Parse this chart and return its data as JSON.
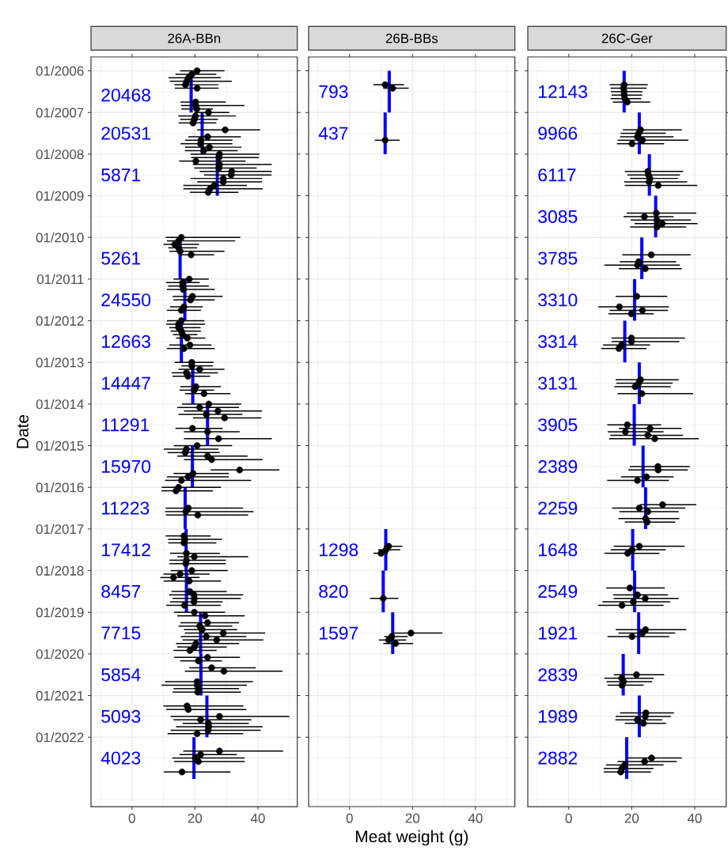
{
  "chart_data": [
    {
      "type": "scatter",
      "orientation": "horizontal",
      "title": "26A-BBn",
      "ylabel": "Date",
      "xlim": [
        -13,
        52.5
      ],
      "ylim": [
        "2023-09",
        "2005-09"
      ],
      "xticks": [
        0,
        20,
        40
      ],
      "yticks": [
        {
          "value": "2006-01",
          "label": "01/2006"
        },
        {
          "value": "2007-01",
          "label": "01/2007"
        },
        {
          "value": "2008-01",
          "label": "01/2008"
        },
        {
          "value": "2009-01",
          "label": "01/2009"
        },
        {
          "value": "2010-01",
          "label": "01/2010"
        },
        {
          "value": "2011-01",
          "label": "01/2011"
        },
        {
          "value": "2012-01",
          "label": "01/2012"
        },
        {
          "value": "2013-01",
          "label": "01/2013"
        },
        {
          "value": "2014-01",
          "label": "01/2014"
        },
        {
          "value": "2015-01",
          "label": "01/2015"
        },
        {
          "value": "2016-01",
          "label": "01/2016"
        },
        {
          "value": "2017-01",
          "label": "01/2017"
        },
        {
          "value": "2018-01",
          "label": "01/2018"
        },
        {
          "value": "2019-01",
          "label": "01/2019"
        },
        {
          "value": "2020-01",
          "label": "01/2020"
        },
        {
          "value": "2021-01",
          "label": "01/2021"
        },
        {
          "value": "2022-01",
          "label": "01/2022"
        }
      ],
      "grid": true,
      "marker": "circle",
      "series": [
        {
          "type": "line",
          "marker": "none",
          "color": "#0000ff",
          "values": [
            18.8,
            18.8,
            null,
            22.3,
            22.3,
            null,
            27.1,
            27.1,
            null,
            15.3,
            15.3,
            null,
            16.8,
            16.8,
            null,
            15.7,
            15.7,
            null,
            19.3,
            19.3,
            null,
            24.0,
            24.0,
            null,
            19.2,
            19.2,
            null,
            16.9,
            16.9,
            null,
            17.2,
            17.2,
            null,
            17.3,
            17.3,
            null,
            21.8,
            21.8,
            null,
            21.9,
            21.9,
            null,
            23.8,
            23.8,
            null,
            19.7,
            19.7
          ],
          "x": [
            "2006-03",
            "2007-01",
            null,
            "2007-01",
            "2008-01",
            null,
            "2008-01",
            "2009-01",
            null,
            "2010-01",
            "2011-01",
            null,
            "2011-01",
            "2012-01",
            null,
            "2012-01",
            "2013-01",
            null,
            "2013-01",
            "2014-01",
            null,
            "2014-01",
            "2015-01",
            null,
            "2015-01",
            "2016-01",
            null,
            "2016-01",
            "2017-01",
            null,
            "2017-01",
            "2018-01",
            null,
            "2018-01",
            "2019-01",
            null,
            "2019-01",
            "2020-01",
            null,
            "2020-01",
            "2021-01",
            null,
            "2021-01",
            "2022-01",
            null,
            "2022-01",
            "2023-01"
          ]
        },
        {
          "color": "#000000",
          "values": [
            20.7,
            19.0,
            18.0,
            17.4,
            17.0,
            20.7,
            20.2,
            20.2,
            20.6,
            24.3,
            20.2,
            19.8,
            19.4,
            29.6,
            24.0,
            21.9,
            21.8,
            24.6,
            22.8,
            27.8,
            27.6,
            20.3,
            27.8,
            27.6,
            31.7,
            31.5,
            29.0,
            29.0,
            26.1,
            24.8,
            24.2,
            15.7,
            14.8,
            13.6,
            14.8,
            15.3,
            18.8,
            18.2,
            16.1,
            16.1,
            16.3,
            19.2,
            18.6,
            16.5,
            15.7,
            15.7,
            14.8,
            14.8,
            15.7,
            16.1,
            17.6,
            18.4,
            16.5,
            19.0,
            19.0,
            21.5,
            17.3,
            17.8,
            20.3,
            19.8,
            22.9,
            24.4,
            21.5,
            27.3,
            23.6,
            29.4,
            19.2,
            24.0,
            27.5,
            20.7,
            17.3,
            16.9,
            24.0,
            25.3,
            34.2,
            19.4,
            17.8,
            15.7,
            14.8,
            14.0,
            17.9,
            17.1,
            20.9,
            16.5,
            16.8,
            16.5,
            17.3,
            19.8,
            17.3,
            17.1,
            19.0,
            15.3,
            13.2,
            18.2,
            18.4,
            19.7,
            19.8,
            19.7,
            16.7,
            19.8,
            23.2,
            24.0,
            21.5,
            22.3,
            29.0,
            23.6,
            26.9,
            20.3,
            19.8,
            18.4,
            24.0,
            21.1,
            25.3,
            29.2,
            20.7,
            20.7,
            21.1,
            20.9,
            17.5,
            17.9,
            27.8,
            21.8,
            24.3,
            24.4,
            24.2,
            20.7,
            27.8,
            21.8,
            20.1,
            21.1,
            15.9
          ],
          "x": [
            "2006-01",
            "2006-02",
            "2006-03",
            "2006-04",
            "2006-05",
            "2006-06",
            "2006-10",
            "2006-11",
            "2006-12",
            "2007-01",
            "2007-02",
            "2007-03",
            "2007-04",
            "2007-06",
            "2007-08",
            "2007-09",
            "2007-10",
            "2007-11",
            "2007-12",
            "2008-01",
            "2008-02",
            "2008-03",
            "2008-04",
            "2008-05",
            "2008-06",
            "2008-07",
            "2008-08",
            "2008-09",
            "2008-10",
            "2008-11",
            "2008-12",
            "2010-01",
            "2010-02",
            "2010-03",
            "2010-04",
            "2010-05",
            "2010-06",
            "2011-01",
            "2011-02",
            "2011-03",
            "2011-04",
            "2011-06",
            "2011-07",
            "2011-09",
            "2011-10",
            "2012-01",
            "2012-02",
            "2012-03",
            "2012-04",
            "2012-05",
            "2012-06",
            "2012-08",
            "2012-09",
            "2013-01",
            "2013-02",
            "2013-03",
            "2013-04",
            "2013-05",
            "2013-08",
            "2013-09",
            "2013-10",
            "2014-01",
            "2014-02",
            "2014-03",
            "2014-04",
            "2014-05",
            "2014-08",
            "2014-09",
            "2014-11",
            "2015-01",
            "2015-02",
            "2015-03",
            "2015-04",
            "2015-05",
            "2015-08",
            "2015-09",
            "2015-10",
            "2015-11",
            "2016-01",
            "2016-02",
            "2016-07",
            "2016-08",
            "2016-09",
            "2017-03",
            "2017-04",
            "2017-05",
            "2017-08",
            "2017-09",
            "2017-10",
            "2017-11",
            "2018-01",
            "2018-02",
            "2018-03",
            "2018-04",
            "2018-07",
            "2018-08",
            "2018-09",
            "2018-10",
            "2018-11",
            "2019-01",
            "2019-02",
            "2019-04",
            "2019-05",
            "2019-06",
            "2019-07",
            "2019-08",
            "2019-09",
            "2019-10",
            "2019-11",
            "2019-12",
            "2020-02",
            "2020-03",
            "2020-05",
            "2020-06",
            "2020-09",
            "2020-10",
            "2020-11",
            "2020-12",
            "2021-04",
            "2021-05",
            "2021-07",
            "2021-08",
            "2021-09",
            "2021-10",
            "2021-11",
            "2021-12",
            "2022-05",
            "2022-06",
            "2022-07",
            "2022-08",
            "2022-11"
          ],
          "errors": [
            [
              15.3,
              29.4
            ],
            [
              13.8,
              26.8
            ],
            [
              11.6,
              28.2
            ],
            [
              12.0,
              31.7
            ],
            [
              13.5,
              27.5
            ],
            [
              13.6,
              27.5
            ],
            [
              15.4,
              29.8
            ],
            [
              15.5,
              35.7
            ],
            [
              15.7,
              25.7
            ],
            [
              19.8,
              30.9
            ],
            [
              14.7,
              33.0
            ],
            [
              15.3,
              27.3
            ],
            [
              14.8,
              26.8
            ],
            [
              20.7,
              40.7
            ],
            [
              17.9,
              34.6
            ],
            [
              16.9,
              31.9
            ],
            [
              15.4,
              31.9
            ],
            [
              16.9,
              34.8
            ],
            [
              16.8,
              33.6
            ],
            [
              18.6,
              40.5
            ],
            [
              18.8,
              40.3
            ],
            [
              15.0,
              36.1
            ],
            [
              19.3,
              44.4
            ],
            [
              19.8,
              39.6
            ],
            [
              21.5,
              44.4
            ],
            [
              22.9,
              44.3
            ],
            [
              18.6,
              41.3
            ],
            [
              20.7,
              41.3
            ],
            [
              16.3,
              36.5
            ],
            [
              16.3,
              41.5
            ],
            [
              18.4,
              33.8
            ],
            [
              10.7,
              34.4
            ],
            [
              11.1,
              32.8
            ],
            [
              10.0,
              21.3
            ],
            [
              11.5,
              20.7
            ],
            [
              11.9,
              29.4
            ],
            [
              15.3,
              26.1
            ],
            [
              13.2,
              24.4
            ],
            [
              10.8,
              21.5
            ],
            [
              11.5,
              24.4
            ],
            [
              11.1,
              26.3
            ],
            [
              12.9,
              28.8
            ],
            [
              13.2,
              26.3
            ],
            [
              12.1,
              22.5
            ],
            [
              11.1,
              21.9
            ],
            [
              11.1,
              23.0
            ],
            [
              10.9,
              23.2
            ],
            [
              11.9,
              21.8
            ],
            [
              12.3,
              21.9
            ],
            [
              13.0,
              20.8
            ],
            [
              14.0,
              23.3
            ],
            [
              11.9,
              25.3
            ],
            [
              11.1,
              26.3
            ],
            [
              13.6,
              25.9
            ],
            [
              15.7,
              25.7
            ],
            [
              14.8,
              29.4
            ],
            [
              12.6,
              27.3
            ],
            [
              12.9,
              24.8
            ],
            [
              15.3,
              28.2
            ],
            [
              15.1,
              26.1
            ],
            [
              16.9,
              31.3
            ],
            [
              15.9,
              34.7
            ],
            [
              14.4,
              34.0
            ],
            [
              16.5,
              41.3
            ],
            [
              14.8,
              35.1
            ],
            [
              19.4,
              41.1
            ],
            [
              13.8,
              28.8
            ],
            [
              16.5,
              34.2
            ],
            [
              16.5,
              44.4
            ],
            [
              13.3,
              31.8
            ],
            [
              10.1,
              27.5
            ],
            [
              11.3,
              27.8
            ],
            [
              14.4,
              36.7
            ],
            [
              16.5,
              41.5
            ],
            [
              25.0,
              46.8
            ],
            [
              13.2,
              30.8
            ],
            [
              11.1,
              30.8
            ],
            [
              10.5,
              37.8
            ],
            [
              9.4,
              28.3
            ],
            [
              9.4,
              25.7
            ],
            [
              10.7,
              35.3
            ],
            [
              10.5,
              38.6
            ],
            [
              10.8,
              36.9
            ],
            [
              10.7,
              25.0
            ],
            [
              11.5,
              28.6
            ],
            [
              11.5,
              26.8
            ],
            [
              12.1,
              27.9
            ],
            [
              14.4,
              36.9
            ],
            [
              11.9,
              29.8
            ],
            [
              11.9,
              29.8
            ],
            [
              12.3,
              30.4
            ],
            [
              10.0,
              24.7
            ],
            [
              9.0,
              21.5
            ],
            [
              10.1,
              28.3
            ],
            [
              12.6,
              30.1
            ],
            [
              11.8,
              35.3
            ],
            [
              12.9,
              34.6
            ],
            [
              12.1,
              28.8
            ],
            [
              10.9,
              28.2
            ],
            [
              13.4,
              29.6
            ],
            [
              14.4,
              35.8
            ],
            [
              15.4,
              34.0
            ],
            [
              14.8,
              31.9
            ],
            [
              16.5,
              33.4
            ],
            [
              16.8,
              42.3
            ],
            [
              15.5,
              36.3
            ],
            [
              16.1,
              41.7
            ],
            [
              14.0,
              34.0
            ],
            [
              14.4,
              30.1
            ],
            [
              13.2,
              26.9
            ],
            [
              13.4,
              34.3
            ],
            [
              15.3,
              28.6
            ],
            [
              18.2,
              39.3
            ],
            [
              16.8,
              47.8
            ],
            [
              10.5,
              38.4
            ],
            [
              9.4,
              36.5
            ],
            [
              13.2,
              34.0
            ],
            [
              12.9,
              34.6
            ],
            [
              10.0,
              35.4
            ],
            [
              10.9,
              36.3
            ],
            [
              12.3,
              50.0
            ],
            [
              13.2,
              37.9
            ],
            [
              16.1,
              37.1
            ],
            [
              14.0,
              41.5
            ],
            [
              12.3,
              40.9
            ],
            [
              11.3,
              35.3
            ],
            [
              16.3,
              48.0
            ],
            [
              15.1,
              33.3
            ],
            [
              12.8,
              35.8
            ],
            [
              13.4,
              35.8
            ],
            [
              10.1,
              31.3
            ]
          ]
        }
      ],
      "annotations": [
        "20468",
        "20531",
        "5871",
        "5261",
        "24550",
        "12663",
        "14447",
        "11291",
        "15970",
        "11223",
        "17412",
        "8457",
        "7715",
        "5854",
        "5093",
        "4023"
      ]
    },
    {
      "type": "scatter",
      "orientation": "horizontal",
      "title": "26B-BBs",
      "xlabel": "Meat weight (g)",
      "xlim": [
        -13,
        52.5
      ],
      "ylim": [
        "2023-09",
        "2005-09"
      ],
      "xticks": [
        0,
        20,
        40
      ],
      "yticks": [
        {
          "value": "2006-01",
          "label": null
        },
        {
          "value": "2007-01",
          "label": null
        },
        {
          "value": "2008-01",
          "label": null
        },
        {
          "value": "2009-01",
          "label": null
        },
        {
          "value": "2010-01",
          "label": null
        },
        {
          "value": "2011-01",
          "label": null
        },
        {
          "value": "2012-01",
          "label": null
        },
        {
          "value": "2013-01",
          "label": null
        },
        {
          "value": "2014-01",
          "label": null
        },
        {
          "value": "2015-01",
          "label": null
        },
        {
          "value": "2016-01",
          "label": null
        },
        {
          "value": "2017-01",
          "label": null
        },
        {
          "value": "2018-01",
          "label": null
        },
        {
          "value": "2019-01",
          "label": null
        },
        {
          "value": "2020-01",
          "label": null
        },
        {
          "value": "2021-01",
          "label": null
        },
        {
          "value": "2022-01",
          "label": null
        }
      ],
      "tick_labels": "x",
      "grid": true,
      "marker": "circle",
      "series": [
        {
          "type": "line",
          "marker": "none",
          "color": "#0000ff",
          "values": [
            12.6,
            12.6,
            null,
            11.3,
            11.3,
            null,
            11.5,
            11.5,
            null,
            10.7,
            10.7,
            null,
            13.7,
            13.7
          ],
          "x": [
            "2006-01",
            "2007-01",
            null,
            "2007-01",
            "2008-01",
            null,
            "2017-01",
            "2018-01",
            null,
            "2018-01",
            "2019-01",
            null,
            "2019-01",
            "2020-01"
          ]
        },
        {
          "color": "#000000",
          "values": [
            11.3,
            13.7,
            11.3,
            12.4,
            11.6,
            10.0,
            10.7,
            19.5,
            13.4,
            12.4,
            14.6
          ],
          "x": [
            "2006-05",
            "2006-06",
            "2007-09",
            "2017-06",
            "2017-07",
            "2017-08",
            "2018-09",
            "2019-07",
            "2019-08",
            "2019-09",
            "2019-10"
          ],
          "errors": [
            [
              7.6,
              17.3
            ],
            [
              10.7,
              18.8
            ],
            [
              8.0,
              15.9
            ],
            [
              10.9,
              16.8
            ],
            [
              9.1,
              16.1
            ],
            [
              7.6,
              12.2
            ],
            [
              6.5,
              15.5
            ],
            [
              13.4,
              29.5
            ],
            [
              11.0,
              18.5
            ],
            [
              9.3,
              18.0
            ],
            [
              10.7,
              20.2
            ]
          ]
        }
      ],
      "annotations": [
        "793",
        "437",
        "1298",
        "820",
        "1597"
      ]
    },
    {
      "type": "scatter",
      "orientation": "horizontal",
      "title": "26C-Ger",
      "xlim": [
        -13,
        50
      ],
      "ylim": [
        "2023-09",
        "2005-09"
      ],
      "xticks": [
        0,
        20,
        40
      ],
      "yticks": [
        {
          "value": "2006-01",
          "label": null
        },
        {
          "value": "2007-01",
          "label": null
        },
        {
          "value": "2008-01",
          "label": null
        },
        {
          "value": "2009-01",
          "label": null
        },
        {
          "value": "2010-01",
          "label": null
        },
        {
          "value": "2011-01",
          "label": null
        },
        {
          "value": "2012-01",
          "label": null
        },
        {
          "value": "2013-01",
          "label": null
        },
        {
          "value": "2014-01",
          "label": null
        },
        {
          "value": "2015-01",
          "label": null
        },
        {
          "value": "2016-01",
          "label": null
        },
        {
          "value": "2017-01",
          "label": null
        },
        {
          "value": "2018-01",
          "label": null
        },
        {
          "value": "2019-01",
          "label": null
        },
        {
          "value": "2020-01",
          "label": null
        },
        {
          "value": "2021-01",
          "label": null
        },
        {
          "value": "2022-01",
          "label": null
        }
      ],
      "tick_labels": "x",
      "grid": true,
      "marker": "circle",
      "series": [
        {
          "type": "line",
          "marker": "none",
          "color": "#0000ff",
          "values": [
            17.6,
            17.6,
            null,
            22.4,
            22.4,
            null,
            25.6,
            25.6,
            null,
            27.6,
            27.6,
            null,
            23.2,
            23.2,
            null,
            20.9,
            20.9,
            null,
            17.8,
            17.8,
            null,
            22.4,
            22.4,
            null,
            20.8,
            20.8,
            null,
            23.6,
            23.6,
            null,
            24.4,
            24.4,
            null,
            20.3,
            20.3,
            null,
            20.9,
            20.9,
            null,
            22.2,
            22.2,
            null,
            17.3,
            17.3,
            null,
            22.4,
            22.4,
            null,
            18.4,
            18.4
          ],
          "x": [
            "2006-01",
            "2007-01",
            null,
            "2007-01",
            "2008-01",
            null,
            "2008-01",
            "2009-01",
            null,
            "2009-01",
            "2010-01",
            null,
            "2010-01",
            "2011-01",
            null,
            "2011-01",
            "2012-01",
            null,
            "2012-01",
            "2013-01",
            null,
            "2013-01",
            "2014-01",
            null,
            "2014-01",
            "2015-01",
            null,
            "2015-01",
            "2016-01",
            null,
            "2016-01",
            "2017-01",
            null,
            "2017-01",
            "2018-01",
            null,
            "2018-01",
            "2019-01",
            null,
            "2019-01",
            "2020-01",
            null,
            "2020-01",
            "2021-01",
            null,
            "2021-01",
            "2022-01",
            null,
            "2022-01",
            "2023-01"
          ]
        },
        {
          "color": "#000000",
          "values": [
            17.6,
            17.4,
            17.6,
            17.6,
            17.8,
            18.6,
            22.8,
            22.2,
            21.8,
            23.4,
            20.1,
            25.1,
            25.3,
            25.8,
            25.5,
            28.4,
            27.8,
            24.0,
            28.0,
            29.7,
            28.0,
            26.2,
            22.2,
            21.8,
            24.3,
            21.6,
            16.1,
            23.4,
            19.9,
            19.9,
            19.9,
            16.8,
            15.9,
            22.8,
            22.2,
            21.1,
            23.2,
            18.6,
            25.8,
            18.0,
            25.1,
            27.3,
            28.3,
            28.4,
            24.7,
            21.8,
            29.8,
            22.4,
            25.1,
            24.4,
            24.9,
            22.4,
            20.1,
            18.7,
            19.4,
            21.8,
            24.3,
            20.5,
            16.9,
            24.4,
            23.4,
            20.1,
            21.5,
            16.8,
            17.4,
            16.9,
            24.5,
            24.3,
            21.8,
            23.7,
            26.3,
            24.1,
            17.8,
            16.9,
            16.5
          ],
          "x": [
            "2006-05",
            "2006-06",
            "2006-07",
            "2006-08",
            "2006-09",
            "2006-10",
            "2007-06",
            "2007-07",
            "2007-08",
            "2007-09",
            "2007-10",
            "2008-06",
            "2008-07",
            "2008-08",
            "2008-09",
            "2008-10",
            "2009-06",
            "2009-07",
            "2009-08",
            "2009-09",
            "2009-10",
            "2010-06",
            "2010-08",
            "2010-09",
            "2010-10",
            "2011-06",
            "2011-09",
            "2011-10",
            "2011-11",
            "2012-06",
            "2012-07",
            "2012-08",
            "2012-09",
            "2013-06",
            "2013-07",
            "2013-08",
            "2013-10",
            "2014-07",
            "2014-08",
            "2014-09",
            "2014-10",
            "2014-11",
            "2015-07",
            "2015-08",
            "2015-10",
            "2015-11",
            "2016-06",
            "2016-07",
            "2016-08",
            "2016-10",
            "2016-11",
            "2017-06",
            "2017-07",
            "2017-08",
            "2018-06",
            "2018-08",
            "2018-09",
            "2018-10",
            "2018-11",
            "2019-06",
            "2019-07",
            "2019-08",
            "2020-07",
            "2020-08",
            "2020-09",
            "2020-10",
            "2021-06",
            "2021-07",
            "2021-08",
            "2021-09",
            "2022-07",
            "2022-08",
            "2022-09",
            "2022-10",
            "2022-11"
          ],
          "errors": [
            [
              13.0,
              25.1
            ],
            [
              13.3,
              24.7
            ],
            [
              13.4,
              23.4
            ],
            [
              13.6,
              23.3
            ],
            [
              13.3,
              23.0
            ],
            [
              14.0,
              25.9
            ],
            [
              17.2,
              35.9
            ],
            [
              16.5,
              30.8
            ],
            [
              16.3,
              33.3
            ],
            [
              15.5,
              38.0
            ],
            [
              15.3,
              30.3
            ],
            [
              17.8,
              36.3
            ],
            [
              18.6,
              35.3
            ],
            [
              19.5,
              34.7
            ],
            [
              17.6,
              37.6
            ],
            [
              17.8,
              40.8
            ],
            [
              18.4,
              40.5
            ],
            [
              17.4,
              33.3
            ],
            [
              19.7,
              38.8
            ],
            [
              20.9,
              40.9
            ],
            [
              19.5,
              37.3
            ],
            [
              17.0,
              38.7
            ],
            [
              16.2,
              34.1
            ],
            [
              11.3,
              35.3
            ],
            [
              15.9,
              35.9
            ],
            [
              14.9,
              31.3
            ],
            [
              9.4,
              31.8
            ],
            [
              13.0,
              31.5
            ],
            [
              12.6,
              27.0
            ],
            [
              13.6,
              36.9
            ],
            [
              13.6,
              35.1
            ],
            [
              10.9,
              25.8
            ],
            [
              10.3,
              24.7
            ],
            [
              14.9,
              34.9
            ],
            [
              15.1,
              33.0
            ],
            [
              14.5,
              32.4
            ],
            [
              15.5,
              39.5
            ],
            [
              12.2,
              29.3
            ],
            [
              15.9,
              35.8
            ],
            [
              12.4,
              30.1
            ],
            [
              13.2,
              36.3
            ],
            [
              12.8,
              41.3
            ],
            [
              19.4,
              38.4
            ],
            [
              18.9,
              37.8
            ],
            [
              16.6,
              33.3
            ],
            [
              12.2,
              31.8
            ],
            [
              22.6,
              40.5
            ],
            [
              13.8,
              37.0
            ],
            [
              16.1,
              34.9
            ],
            [
              15.8,
              35.1
            ],
            [
              17.8,
              33.8
            ],
            [
              14.3,
              36.8
            ],
            [
              13.3,
              30.8
            ],
            [
              11.3,
              28.8
            ],
            [
              11.9,
              30.5
            ],
            [
              14.1,
              31.5
            ],
            [
              14.3,
              34.9
            ],
            [
              10.7,
              32.2
            ],
            [
              9.3,
              30.1
            ],
            [
              14.9,
              37.3
            ],
            [
              15.8,
              33.8
            ],
            [
              12.3,
              31.9
            ],
            [
              14.3,
              30.3
            ],
            [
              11.3,
              27.0
            ],
            [
              12.0,
              26.5
            ],
            [
              12.3,
              23.8
            ],
            [
              16.3,
              33.4
            ],
            [
              14.9,
              32.4
            ],
            [
              14.8,
              29.7
            ],
            [
              17.8,
              30.9
            ],
            [
              18.4,
              35.9
            ],
            [
              15.5,
              34.3
            ],
            [
              11.8,
              30.1
            ],
            [
              11.1,
              26.9
            ],
            [
              11.1,
              26.1
            ]
          ]
        }
      ],
      "annotations": [
        "12143",
        "9966",
        "6117",
        "3085",
        "3785",
        "3310",
        "3314",
        "3131",
        "3905",
        "2389",
        "2259",
        "1648",
        "2549",
        "1921",
        "2839",
        "1989",
        "2882"
      ]
    }
  ]
}
